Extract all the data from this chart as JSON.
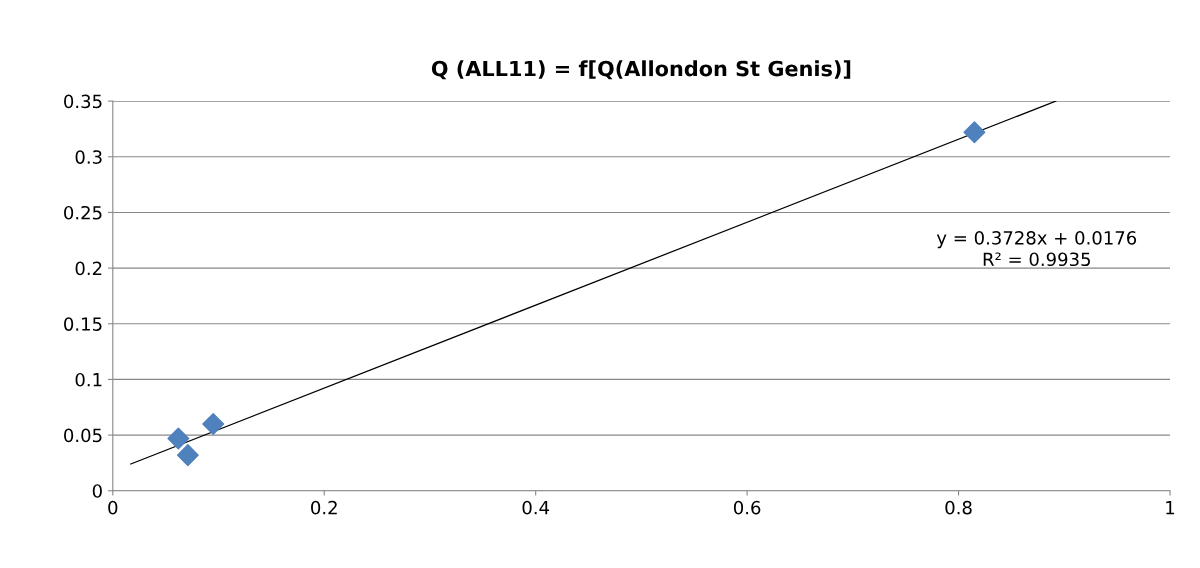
{
  "chart_data": {
    "type": "scatter",
    "title": "Q (ALL11) = f[Q(Allondon St Genis)]",
    "x": [
      0.062,
      0.071,
      0.095,
      0.815
    ],
    "series": [
      {
        "color": "#4f81bd",
        "values": [
          0.047,
          0.032,
          0.06,
          0.322
        ],
        "marker": "diamond"
      },
      {
        "type": "line",
        "color": "#000000",
        "x": [
          0.017,
          0.892
        ],
        "values": [
          0.024,
          0.35
        ],
        "marker": "none"
      }
    ],
    "xlim": [
      0,
      1
    ],
    "xticks": [
      0,
      0.2,
      0.4,
      0.6,
      0.8,
      1
    ],
    "ylim": [
      0,
      0.35
    ],
    "yticks": [
      0,
      0.05,
      0.1,
      0.15,
      0.2,
      0.25,
      0.3,
      0.35
    ],
    "grid": "y",
    "annotations": [
      "y = 0.3728x + 0.0176",
      "R² = 0.9935"
    ]
  }
}
